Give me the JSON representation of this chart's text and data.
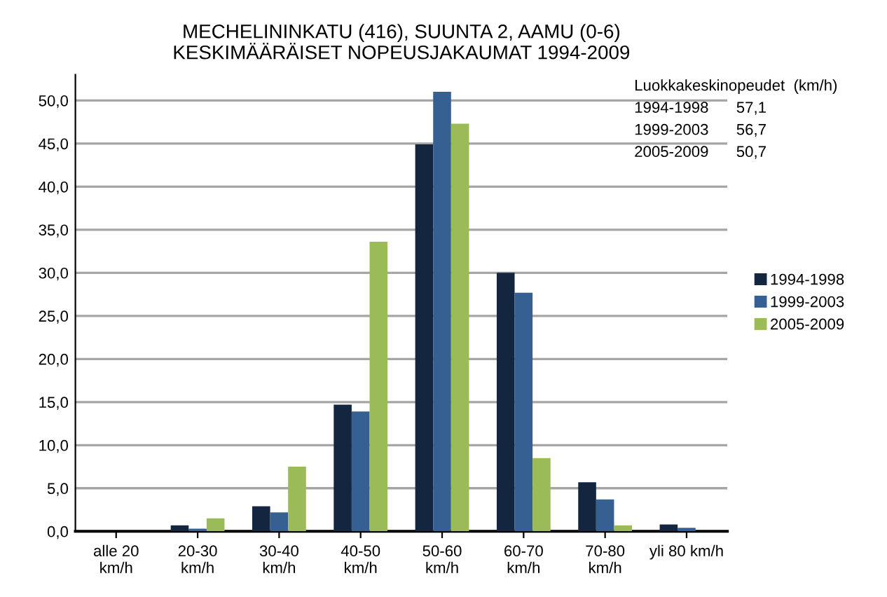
{
  "chart_data": {
    "type": "bar",
    "title": "MECHELININKATU (416), SUUNTA 2, AAMU (0-6)\nKESKIMÄÄRÄISET NOPEUSJAKAUMAT 1994-2009",
    "categories": [
      "alle 20\nkm/h",
      "20-30\nkm/h",
      "30-40\nkm/h",
      "40-50\nkm/h",
      "50-60\nkm/h",
      "60-70\nkm/h",
      "70-80\nkm/h",
      "yli 80 km/h"
    ],
    "series": [
      {
        "name": "1994-1998",
        "color": "#14263f",
        "values": [
          0.0,
          0.7,
          2.9,
          14.7,
          44.9,
          30.0,
          5.7,
          0.8
        ]
      },
      {
        "name": "1999-2003",
        "color": "#376092",
        "values": [
          0.0,
          0.3,
          2.2,
          13.9,
          51.0,
          27.7,
          3.7,
          0.4
        ]
      },
      {
        "name": "2005-2009",
        "color": "#9bbb59",
        "values": [
          0.0,
          1.5,
          7.5,
          33.6,
          47.3,
          8.5,
          0.7,
          0.0
        ]
      }
    ],
    "ylim": [
      0,
      53
    ],
    "yticks": [
      {
        "value": 0,
        "label": "0,0"
      },
      {
        "value": 5,
        "label": "5,0"
      },
      {
        "value": 10,
        "label": "10,0"
      },
      {
        "value": 15,
        "label": "15,0"
      },
      {
        "value": 20,
        "label": "20,0"
      },
      {
        "value": 25,
        "label": "25,0"
      },
      {
        "value": 30,
        "label": "30,0"
      },
      {
        "value": 35,
        "label": "35,0"
      },
      {
        "value": 40,
        "label": "40,0"
      },
      {
        "value": 45,
        "label": "45,0"
      },
      {
        "value": 50,
        "label": "50,0"
      }
    ],
    "grid": "y",
    "legend": "right",
    "annotations": [
      "Luokkakeskinopeudet  (km/h)",
      "1994-1998",
      "57,1",
      "1999-2003",
      "56,7",
      "2005-2009",
      "50,7"
    ]
  }
}
